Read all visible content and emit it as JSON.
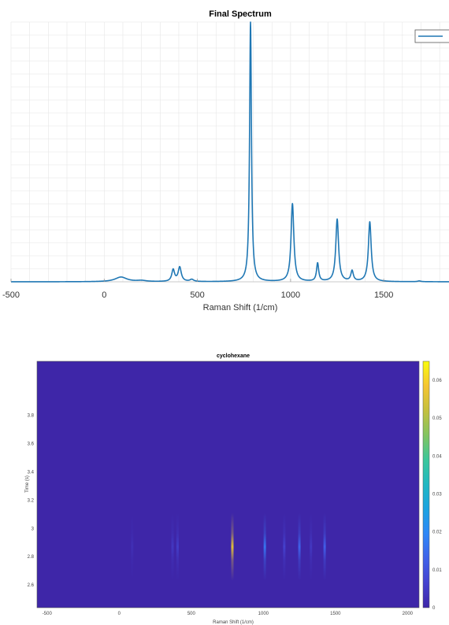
{
  "chart_data": [
    {
      "type": "line",
      "title": "Final Spectrum",
      "xlabel": "Raman Shift (1/cm)",
      "ylabel": "",
      "xlim": [
        -500,
        1850
      ],
      "ylim": [
        0,
        1.0
      ],
      "x_ticks": [
        "-500",
        "0",
        "500",
        "1000",
        "1500"
      ],
      "x_tick_values": [
        -500,
        0,
        500,
        1000,
        1500
      ],
      "grid": true,
      "legend_placement": "top-right",
      "line_color": "#1f77b4",
      "series": [
        {
          "peaks": [
            {
              "center": 90,
              "width": 38,
              "height": 0.018
            },
            {
              "center": 200,
              "width": 30,
              "height": 0.004
            },
            {
              "center": 370,
              "width": 9,
              "height": 0.045
            },
            {
              "center": 405,
              "width": 10,
              "height": 0.055
            },
            {
              "center": 470,
              "width": 12,
              "height": 0.008
            },
            {
              "center": 785,
              "width": 6,
              "height": 1.0
            },
            {
              "center": 1010,
              "width": 9,
              "height": 0.3
            },
            {
              "center": 1145,
              "width": 7,
              "height": 0.07
            },
            {
              "center": 1250,
              "width": 9,
              "height": 0.24
            },
            {
              "center": 1330,
              "width": 8,
              "height": 0.04
            },
            {
              "center": 1425,
              "width": 9,
              "height": 0.23
            },
            {
              "center": 1690,
              "width": 10,
              "height": 0.003
            }
          ]
        }
      ]
    },
    {
      "type": "heatmap",
      "title": "cyclohexane",
      "xlabel": "Raman Shift (1/cm)",
      "ylabel": "Time (s)",
      "xlim": [
        -570,
        2080
      ],
      "ylim": [
        2.44,
        4.18
      ],
      "x_ticks": [
        "-500",
        "0",
        "500",
        "1000",
        "1500",
        "2000"
      ],
      "x_tick_values": [
        -500,
        0,
        500,
        1000,
        1500,
        2000
      ],
      "y_ticks": [
        "2.6",
        "2.8",
        "3",
        "3.2",
        "3.4",
        "3.6",
        "3.8"
      ],
      "y_tick_values": [
        2.6,
        2.8,
        3.0,
        3.2,
        3.4,
        3.6,
        3.8
      ],
      "colorbar_ticks": [
        "0",
        "0.01",
        "0.02",
        "0.03",
        "0.04",
        "0.05",
        "0.06"
      ],
      "colorbar_tick_values": [
        0,
        0.01,
        0.02,
        0.03,
        0.04,
        0.05,
        0.06
      ],
      "colorbar_range": [
        0,
        0.065
      ],
      "time_center": 2.87,
      "time_spread": 0.1,
      "bands": [
        {
          "center": 90,
          "width": 14,
          "peak": 0.002
        },
        {
          "center": 370,
          "width": 7,
          "peak": 0.004
        },
        {
          "center": 405,
          "width": 7,
          "peak": 0.005
        },
        {
          "center": 785,
          "width": 6,
          "peak": 0.055
        },
        {
          "center": 1010,
          "width": 8,
          "peak": 0.016
        },
        {
          "center": 1145,
          "width": 6,
          "peak": 0.006
        },
        {
          "center": 1250,
          "width": 8,
          "peak": 0.013
        },
        {
          "center": 1330,
          "width": 6,
          "peak": 0.004
        },
        {
          "center": 1425,
          "width": 8,
          "peak": 0.012
        }
      ]
    }
  ]
}
